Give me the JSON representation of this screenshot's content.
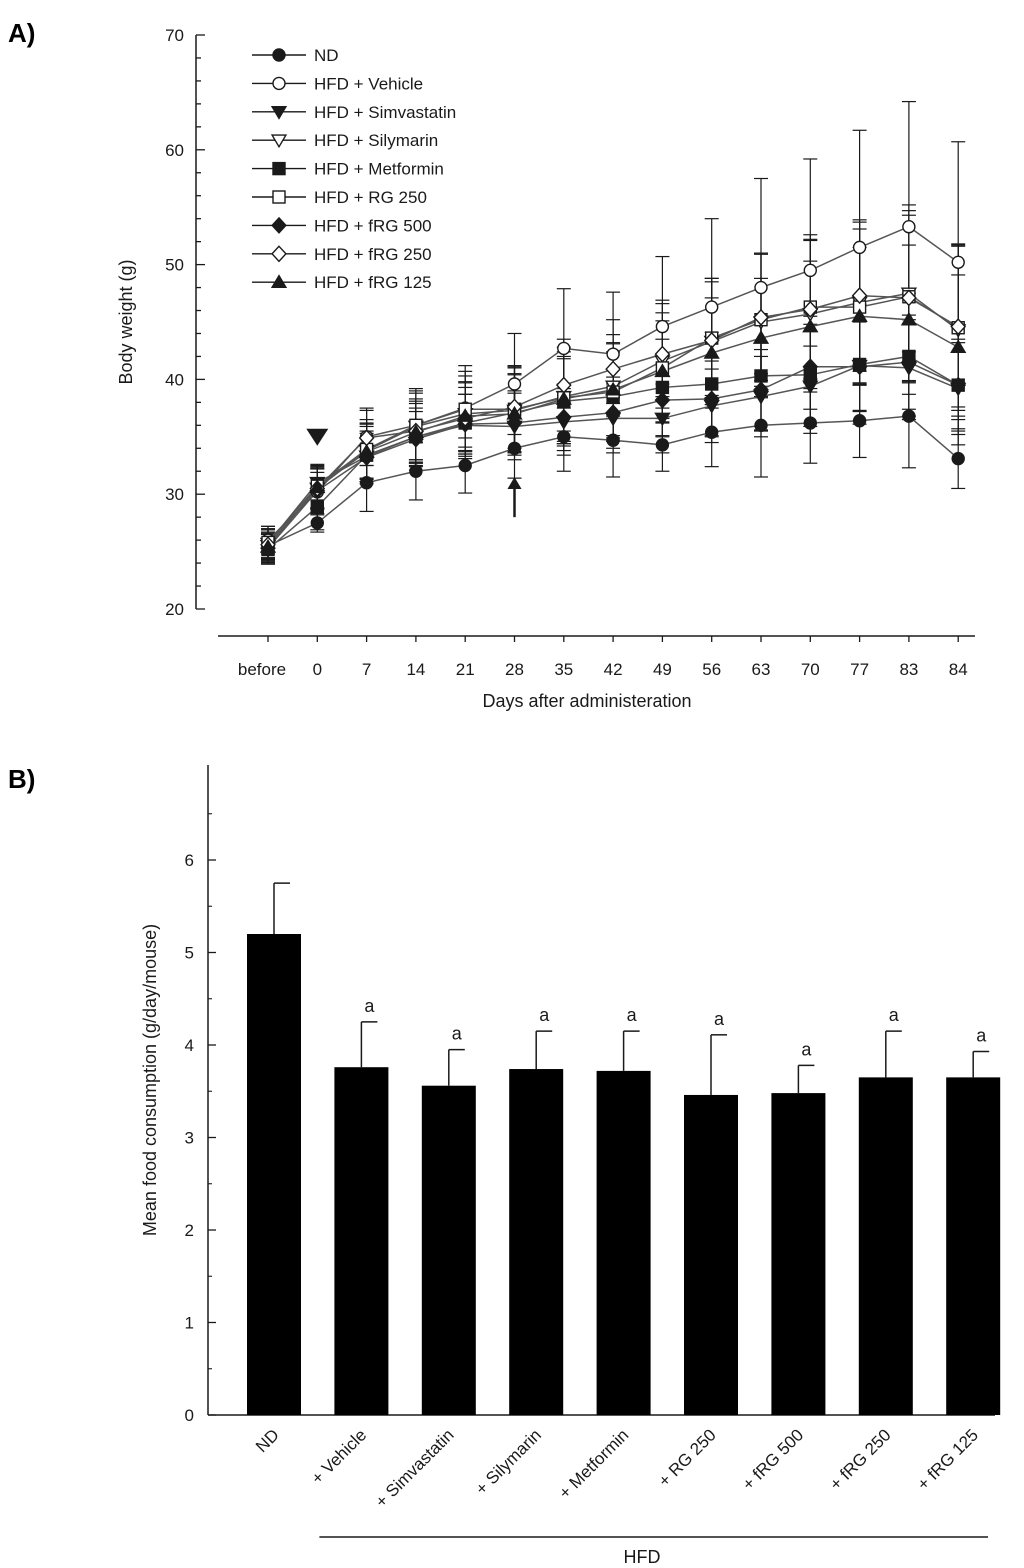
{
  "colors": {
    "ink": "#1a1a1a",
    "bar": "#000000",
    "line_gray": "#555555",
    "background": "#ffffff"
  },
  "chart_data": [
    {
      "panel": "A)",
      "type": "line",
      "xlabel": "Days after administeration",
      "ylabel": "Body weight (g)",
      "ylim": [
        20,
        70
      ],
      "yticks": [
        20,
        30,
        40,
        50,
        60,
        70
      ],
      "categories": [
        "before",
        "0",
        "7",
        "14",
        "21",
        "28",
        "35",
        "42",
        "49",
        "56",
        "63",
        "70",
        "77",
        "83",
        "84"
      ],
      "legend_position": "top-left",
      "annotations": [
        {
          "type": "down-triangle",
          "category": "0",
          "y": 35
        },
        {
          "type": "up-arrow",
          "category": "28",
          "y_from": 28,
          "y_to": 31.5
        }
      ],
      "series": [
        {
          "name": "ND",
          "marker": "circle",
          "filled": true,
          "values": [
            25.5,
            27.5,
            31,
            32,
            32.5,
            34,
            35,
            34.7,
            34.3,
            35.4,
            36,
            36.2,
            36.4,
            36.8,
            33.1
          ],
          "errors": [
            1.5,
            0.8,
            2.5,
            2.5,
            2.4,
            2.6,
            3,
            3.2,
            2.3,
            3,
            4.5,
            3.5,
            3.2,
            4.5,
            2.6
          ]
        },
        {
          "name": "HFD + Vehicle",
          "marker": "circle",
          "filled": false,
          "values": [
            26,
            30.2,
            35,
            36,
            37.5,
            39.6,
            42.7,
            42.2,
            44.6,
            46.3,
            48,
            49.5,
            51.5,
            53.3,
            50.2
          ],
          "errors": [
            1.2,
            2,
            2.5,
            3.2,
            3.7,
            4.4,
            5.2,
            5.4,
            6.1,
            7.7,
            9.5,
            9.7,
            10.2,
            10.9,
            10.5
          ]
        },
        {
          "name": "HFD + Simvastatin",
          "marker": "triangle-down",
          "filled": true,
          "values": [
            25.7,
            31,
            33.3,
            35,
            36,
            35.9,
            36.3,
            36.6,
            36.6,
            37.7,
            38.5,
            39.4,
            41.2,
            41,
            39.2
          ],
          "errors": [
            1.2,
            1.5,
            2.2,
            2.5,
            2.7,
            2.9,
            2.9,
            3,
            3,
            3.2,
            3.5,
            3.5,
            3.9,
            4.2,
            4
          ]
        },
        {
          "name": "HFD + Silymarin",
          "marker": "triangle-down",
          "filled": false,
          "values": [
            25.5,
            30.5,
            33.8,
            35.9,
            37,
            37.3,
            38.5,
            39.4,
            41.6,
            43.3,
            45,
            45.7,
            46.7,
            47.5,
            44.3
          ],
          "errors": [
            1.2,
            1.8,
            2.4,
            2.9,
            3.3,
            3.7,
            4.3,
            4.5,
            5,
            5.5,
            6,
            6.5,
            7,
            7.7,
            7.5
          ]
        },
        {
          "name": "HFD + Metformin",
          "marker": "square",
          "filled": true,
          "values": [
            25.2,
            28.9,
            33.4,
            35,
            36.2,
            37.1,
            38.1,
            38.5,
            39.3,
            39.6,
            40.3,
            40.4,
            41.3,
            42,
            39.5
          ],
          "errors": [
            1.3,
            2,
            2.5,
            2.9,
            3.1,
            3.4,
            3.7,
            3.9,
            4.2,
            4.5,
            4.8,
            5.1,
            5.2,
            5.5,
            5.2
          ]
        },
        {
          "name": "HFD + RG 250",
          "marker": "square",
          "filled": false,
          "values": [
            25.8,
            30.7,
            33.9,
            36,
            37.4,
            37.4,
            38.4,
            38.9,
            41,
            43.6,
            45.2,
            46.3,
            46.3,
            47.2,
            44.5
          ],
          "errors": [
            1.4,
            1.9,
            2.6,
            3,
            3.3,
            3.7,
            4,
            4.3,
            4.8,
            5.2,
            5.8,
            6.3,
            6.8,
            7.5,
            7.2
          ]
        },
        {
          "name": "HFD + fRG 500",
          "marker": "diamond",
          "filled": true,
          "values": [
            25.3,
            30.3,
            33.2,
            34.8,
            36.1,
            36.2,
            36.7,
            37.1,
            38.2,
            38.3,
            39.1,
            41.1,
            41.1,
            41.5,
            39.5
          ],
          "errors": [
            1.2,
            1.6,
            2.1,
            2.4,
            2.6,
            2.8,
            2.9,
            3.1,
            3.2,
            3.3,
            3.5,
            3.7,
            3.9,
            4.1,
            4
          ]
        },
        {
          "name": "HFD + fRG 250",
          "marker": "diamond",
          "filled": false,
          "values": [
            25.6,
            30.5,
            34.9,
            35.5,
            36.6,
            37.6,
            39.5,
            40.9,
            42.2,
            43.4,
            45.4,
            46.1,
            47.3,
            47.1,
            44.6
          ],
          "errors": [
            1.3,
            1.7,
            2.4,
            2.8,
            3.1,
            3.6,
            4,
            4.3,
            4.7,
            5.1,
            5.5,
            6,
            6.6,
            7.2,
            7
          ]
        },
        {
          "name": "HFD + fRG 125",
          "marker": "triangle-up",
          "filled": true,
          "values": [
            25.4,
            30.6,
            33.7,
            35.4,
            36.8,
            37,
            38.3,
            39.1,
            40.7,
            42.3,
            43.6,
            44.6,
            45.5,
            45.2,
            42.8
          ],
          "errors": [
            1.2,
            1.8,
            2.4,
            2.7,
            3,
            3.4,
            3.7,
            4,
            4.4,
            4.8,
            5.2,
            5.7,
            6,
            6.5,
            6.3
          ]
        }
      ]
    },
    {
      "panel": "B)",
      "type": "bar",
      "xlabel": "",
      "ylabel": "Mean food consumption (g/day/mouse)",
      "ylim": [
        0,
        7
      ],
      "yticks": [
        0,
        1,
        2,
        3,
        4,
        5,
        6
      ],
      "categories": [
        "ND",
        "+ Vehicle",
        "+ Simvastatin",
        "+ Silymarin",
        "+ Metformin",
        "+ RG 250",
        "+ fRG 500",
        "+ fRG 250",
        "+ fRG 125"
      ],
      "values": [
        5.2,
        3.76,
        3.56,
        3.74,
        3.72,
        3.46,
        3.48,
        3.65,
        3.65
      ],
      "errors": [
        0.55,
        0.49,
        0.39,
        0.41,
        0.43,
        0.65,
        0.3,
        0.5,
        0.28
      ],
      "significance": [
        "",
        "a",
        "a",
        "a",
        "a",
        "a",
        "a",
        "a",
        "a"
      ],
      "group_label": "HFD",
      "group_start_category": "+ Vehicle"
    }
  ]
}
